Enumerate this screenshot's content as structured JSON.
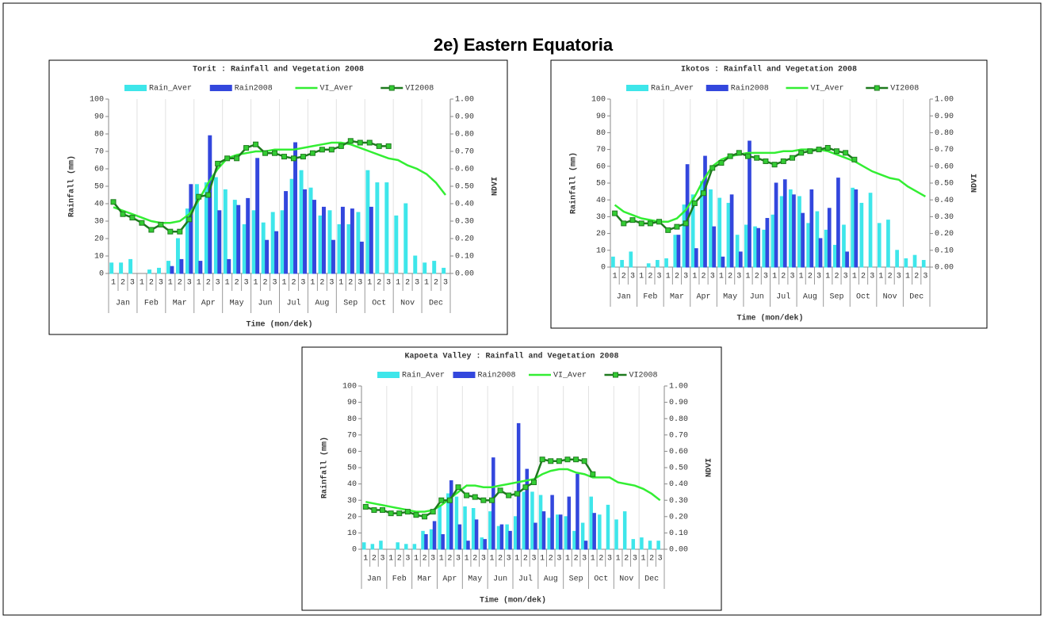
{
  "title": "2e) Eastern Equatoria",
  "chart_data": [
    {
      "type": "combo",
      "title": "Torit   : Rainfall and Vegetation 2008",
      "x_label": "Time (mon/dek)",
      "y_label": "Rainfall (mm)",
      "y2_label": "NDVI",
      "categories": [
        "1",
        "2",
        "3",
        "1",
        "2",
        "3",
        "1",
        "2",
        "3",
        "1",
        "2",
        "3",
        "1",
        "2",
        "3",
        "1",
        "2",
        "3",
        "1",
        "2",
        "3",
        "1",
        "2",
        "3",
        "1",
        "2",
        "3",
        "1",
        "2",
        "3",
        "1",
        "2",
        "3",
        "1",
        "2",
        "3"
      ],
      "months": [
        "Jan",
        "Feb",
        "Mar",
        "Apr",
        "May",
        "Jun",
        "Jul",
        "Aug",
        "Sep",
        "Oct",
        "Nov",
        "Dec"
      ],
      "ylim": [
        0,
        100
      ],
      "yticks": [
        0,
        10,
        20,
        30,
        40,
        50,
        60,
        70,
        80,
        90,
        100
      ],
      "y2lim": [
        0,
        1
      ],
      "y2ticks": [
        {
          "value": 0,
          "label": "0.00"
        },
        {
          "value": 0.1,
          "label": "0.10"
        },
        {
          "value": 0.2,
          "label": "0.20"
        },
        {
          "value": 0.3,
          "label": "0.30"
        },
        {
          "value": 0.4,
          "label": "0.40"
        },
        {
          "value": 0.5,
          "label": "0.50"
        },
        {
          "value": 0.6,
          "label": "0.60"
        },
        {
          "value": 0.7,
          "label": "0.70"
        },
        {
          "value": 0.8,
          "label": "0.80"
        },
        {
          "value": 0.9,
          "label": "0.90"
        },
        {
          "value": 1,
          "label": "1.00"
        }
      ],
      "grid": true,
      "series": [
        {
          "name": "Rain_Aver",
          "type": "bar",
          "color": "#3ee6ea",
          "values": [
            6,
            6,
            8,
            0,
            2,
            3,
            7,
            20,
            37,
            51,
            52,
            55,
            48,
            42,
            28,
            36,
            29,
            35,
            36,
            54,
            59,
            49,
            33,
            36,
            28,
            28,
            35,
            59,
            52,
            52,
            33,
            40,
            10,
            6,
            7,
            3
          ]
        },
        {
          "name": "Rain2008",
          "type": "bar",
          "color": "#3347dd",
          "values": [
            0,
            0,
            0,
            0,
            0,
            0,
            4,
            8,
            51,
            7,
            79,
            36,
            8,
            39,
            43,
            66,
            19,
            24,
            47,
            75,
            48,
            42,
            38,
            19,
            38,
            37,
            18,
            38,
            null,
            null,
            null,
            null,
            null,
            null,
            null,
            null
          ]
        },
        {
          "name": "VI_Aver",
          "type": "line",
          "axis": "y2",
          "color": "#33ee33",
          "values": [
            0.38,
            0.36,
            0.34,
            0.32,
            0.3,
            0.29,
            0.29,
            0.3,
            0.34,
            0.42,
            0.52,
            0.6,
            0.66,
            0.68,
            0.69,
            0.7,
            0.7,
            0.71,
            0.71,
            0.71,
            0.72,
            0.73,
            0.74,
            0.75,
            0.75,
            0.74,
            0.72,
            0.7,
            0.68,
            0.66,
            0.65,
            0.62,
            0.6,
            0.57,
            0.52,
            0.45
          ]
        },
        {
          "name": "VI2008",
          "type": "line",
          "axis": "y2",
          "color": "#1e7a1e",
          "marker": "square",
          "marker_color": "#33cc33",
          "values": [
            0.41,
            0.34,
            0.32,
            0.29,
            0.25,
            0.28,
            0.24,
            0.24,
            0.31,
            0.44,
            0.45,
            0.63,
            0.66,
            0.66,
            0.72,
            0.74,
            0.69,
            0.69,
            0.67,
            0.66,
            0.67,
            0.69,
            0.71,
            0.71,
            0.73,
            0.76,
            0.75,
            0.75,
            0.73,
            0.73,
            null,
            null,
            null,
            null,
            null,
            null
          ]
        }
      ]
    },
    {
      "type": "combo",
      "title": "Ikotos   : Rainfall and Vegetation 2008",
      "x_label": "Time (mon/dek)",
      "y_label": "Rainfall (mm)",
      "y2_label": "NDVI",
      "categories": [
        "1",
        "2",
        "3",
        "1",
        "2",
        "3",
        "1",
        "2",
        "3",
        "1",
        "2",
        "3",
        "1",
        "2",
        "3",
        "1",
        "2",
        "3",
        "1",
        "2",
        "3",
        "1",
        "2",
        "3",
        "1",
        "2",
        "3",
        "1",
        "2",
        "3",
        "1",
        "2",
        "3",
        "1",
        "2",
        "3"
      ],
      "months": [
        "Jan",
        "Feb",
        "Mar",
        "Apr",
        "May",
        "Jun",
        "Jul",
        "Aug",
        "Sep",
        "Oct",
        "Nov",
        "Dec"
      ],
      "ylim": [
        0,
        100
      ],
      "yticks": [
        0,
        10,
        20,
        30,
        40,
        50,
        60,
        70,
        80,
        90,
        100
      ],
      "y2lim": [
        0,
        1
      ],
      "y2ticks": [
        {
          "value": 0,
          "label": "0.00"
        },
        {
          "value": 0.1,
          "label": "0.10"
        },
        {
          "value": 0.2,
          "label": "0.20"
        },
        {
          "value": 0.3,
          "label": "0.30"
        },
        {
          "value": 0.4,
          "label": "0.40"
        },
        {
          "value": 0.5,
          "label": "0.50"
        },
        {
          "value": 0.6,
          "label": "0.60"
        },
        {
          "value": 0.7,
          "label": "0.70"
        },
        {
          "value": 0.8,
          "label": "0.80"
        },
        {
          "value": 0.9,
          "label": "0.90"
        },
        {
          "value": 1,
          "label": "1.00"
        }
      ],
      "grid": true,
      "series": [
        {
          "name": "Rain_Aver",
          "type": "bar",
          "color": "#3ee6ea",
          "values": [
            6,
            4,
            9,
            0,
            2,
            4,
            5,
            19,
            37,
            43,
            51,
            46,
            41,
            38,
            19,
            25,
            24,
            22,
            31,
            42,
            46,
            42,
            26,
            33,
            22,
            13,
            25,
            47,
            38,
            44,
            26,
            28,
            10,
            5,
            7,
            4
          ]
        },
        {
          "name": "Rain2008",
          "type": "bar",
          "color": "#3347dd",
          "values": [
            0,
            0,
            0,
            0,
            0,
            0,
            0,
            19,
            61,
            11,
            66,
            24,
            6,
            43,
            9,
            75,
            23,
            29,
            50,
            52,
            43,
            32,
            46,
            17,
            35,
            53,
            9,
            46,
            null,
            null,
            null,
            null,
            null,
            null,
            null,
            null
          ]
        },
        {
          "name": "VI_Aver",
          "type": "line",
          "axis": "y2",
          "color": "#33ee33",
          "values": [
            0.37,
            0.33,
            0.31,
            0.29,
            0.28,
            0.27,
            0.27,
            0.29,
            0.34,
            0.42,
            0.52,
            0.6,
            0.64,
            0.66,
            0.67,
            0.68,
            0.68,
            0.68,
            0.68,
            0.69,
            0.69,
            0.7,
            0.7,
            0.7,
            0.69,
            0.67,
            0.65,
            0.63,
            0.6,
            0.57,
            0.55,
            0.53,
            0.52,
            0.48,
            0.45,
            0.42
          ]
        },
        {
          "name": "VI2008",
          "type": "line",
          "axis": "y2",
          "color": "#1e7a1e",
          "marker": "square",
          "marker_color": "#33cc33",
          "values": [
            0.32,
            0.26,
            0.28,
            0.26,
            0.26,
            0.27,
            0.22,
            0.24,
            0.26,
            0.38,
            0.44,
            0.59,
            0.62,
            0.66,
            0.68,
            0.66,
            0.65,
            0.63,
            0.61,
            0.63,
            0.65,
            0.68,
            0.69,
            0.7,
            0.71,
            0.69,
            0.68,
            0.64,
            null,
            null,
            null,
            null,
            null,
            null,
            null,
            null
          ]
        }
      ]
    },
    {
      "type": "combo",
      "title": "Kapoeta Valley  : Rainfall and Vegetation 2008",
      "x_label": "Time (mon/dek)",
      "y_label": "Rainfall (mm)",
      "y2_label": "NDVI",
      "categories": [
        "1",
        "2",
        "3",
        "1",
        "2",
        "3",
        "1",
        "2",
        "3",
        "1",
        "2",
        "3",
        "1",
        "2",
        "3",
        "1",
        "2",
        "3",
        "1",
        "2",
        "3",
        "1",
        "2",
        "3",
        "1",
        "2",
        "3",
        "1",
        "2",
        "3",
        "1",
        "2",
        "3",
        "1",
        "2",
        "3"
      ],
      "months": [
        "Jan",
        "Feb",
        "Mar",
        "Apr",
        "May",
        "Jun",
        "Jul",
        "Aug",
        "Sep",
        "Oct",
        "Nov",
        "Dec"
      ],
      "ylim": [
        0,
        100
      ],
      "yticks": [
        0,
        10,
        20,
        30,
        40,
        50,
        60,
        70,
        80,
        90,
        100
      ],
      "y2lim": [
        0,
        1
      ],
      "y2ticks": [
        {
          "value": 0,
          "label": "0.00"
        },
        {
          "value": 0.1,
          "label": "0.10"
        },
        {
          "value": 0.2,
          "label": "0.20"
        },
        {
          "value": 0.3,
          "label": "0.30"
        },
        {
          "value": 0.4,
          "label": "0.40"
        },
        {
          "value": 0.5,
          "label": "0.50"
        },
        {
          "value": 0.6,
          "label": "0.60"
        },
        {
          "value": 0.7,
          "label": "0.70"
        },
        {
          "value": 0.8,
          "label": "0.80"
        },
        {
          "value": 0.9,
          "label": "0.90"
        },
        {
          "value": 1,
          "label": "1.00"
        }
      ],
      "grid": true,
      "series": [
        {
          "name": "Rain_Aver",
          "type": "bar",
          "color": "#3ee6ea",
          "values": [
            4,
            3,
            5,
            0,
            4,
            3,
            3,
            11,
            12,
            26,
            34,
            32,
            26,
            25,
            7,
            23,
            14,
            15,
            20,
            35,
            35,
            33,
            19,
            21,
            20,
            11,
            16,
            32,
            21,
            27,
            18,
            23,
            6,
            7,
            5,
            5
          ]
        },
        {
          "name": "Rain2008",
          "type": "bar",
          "color": "#3347dd",
          "values": [
            0,
            0,
            0,
            0,
            0,
            0,
            0,
            9,
            17,
            9,
            42,
            15,
            5,
            18,
            6,
            56,
            15,
            11,
            77,
            49,
            16,
            23,
            33,
            21,
            32,
            46,
            5,
            22,
            null,
            null,
            null,
            null,
            null,
            null,
            null,
            null
          ]
        },
        {
          "name": "VI_Aver",
          "type": "line",
          "axis": "y2",
          "color": "#33ee33",
          "values": [
            0.29,
            0.28,
            0.27,
            0.26,
            0.25,
            0.24,
            0.23,
            0.23,
            0.24,
            0.27,
            0.31,
            0.35,
            0.39,
            0.39,
            0.38,
            0.38,
            0.39,
            0.4,
            0.41,
            0.42,
            0.43,
            0.46,
            0.48,
            0.49,
            0.49,
            0.47,
            0.46,
            0.44,
            0.44,
            0.44,
            0.41,
            0.4,
            0.39,
            0.37,
            0.34,
            0.3
          ]
        },
        {
          "name": "VI2008",
          "type": "line",
          "axis": "y2",
          "color": "#1e7a1e",
          "marker": "square",
          "marker_color": "#33cc33",
          "values": [
            0.26,
            0.24,
            0.24,
            0.22,
            0.22,
            0.23,
            0.21,
            0.2,
            0.23,
            0.3,
            0.3,
            0.38,
            0.33,
            0.32,
            0.3,
            0.3,
            0.36,
            0.33,
            0.34,
            0.38,
            0.41,
            0.55,
            0.54,
            0.54,
            0.55,
            0.55,
            0.54,
            0.46,
            null,
            null,
            null,
            null,
            null,
            null,
            null,
            null
          ]
        }
      ]
    }
  ]
}
